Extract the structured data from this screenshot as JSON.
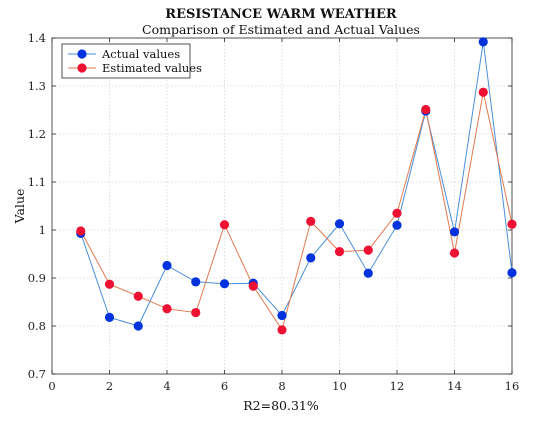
{
  "chart_data": {
    "type": "line",
    "title": "RESISTANCE WARM WEATHER",
    "subtitle": "Comparison of Estimated and Actual Values",
    "xlabel": "R2=80.31%",
    "ylabel": "Value",
    "xlim": [
      0,
      16
    ],
    "ylim": [
      0.7,
      1.4
    ],
    "xticks": [
      "0",
      "2",
      "4",
      "6",
      "8",
      "10",
      "12",
      "14",
      "16"
    ],
    "yticks": [
      "0.7",
      "0.8",
      "0.9",
      "1",
      "1.1",
      "1.2",
      "1.3",
      "1.4"
    ],
    "grid": true,
    "legend_position": "top-left",
    "x": [
      1,
      2,
      3,
      4,
      5,
      6,
      7,
      8,
      9,
      10,
      11,
      12,
      13,
      14,
      15,
      16
    ],
    "series": [
      {
        "name": "Actual values",
        "line_color": "#4a90d9",
        "marker_color": "#0033dd",
        "values": [
          0.993,
          0.818,
          0.8,
          0.926,
          0.892,
          0.888,
          0.889,
          0.822,
          0.942,
          1.013,
          0.91,
          1.01,
          1.248,
          0.996,
          1.392,
          0.911
        ]
      },
      {
        "name": "Estimated values",
        "line_color": "#e07a4f",
        "marker_color": "#ee1133",
        "values": [
          0.998,
          0.887,
          0.862,
          0.836,
          0.828,
          1.011,
          0.883,
          0.792,
          1.018,
          0.955,
          0.958,
          1.035,
          1.251,
          0.952,
          1.287,
          1.012
        ]
      }
    ]
  }
}
